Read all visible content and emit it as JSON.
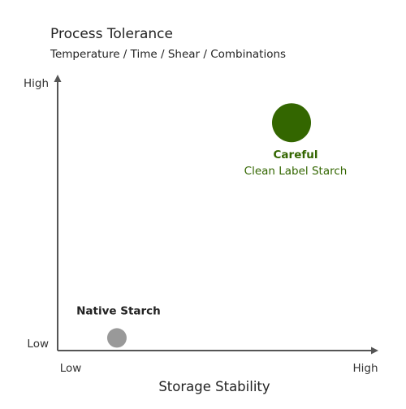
{
  "chart_data": {
    "type": "scatter",
    "title": "Process Tolerance",
    "subtitle": "Temperature / Time / Shear / Combinations",
    "xlabel": "Storage Stability",
    "ylabel": "",
    "x_ticks": [
      "Low",
      "High"
    ],
    "y_ticks": [
      "Low",
      "High"
    ],
    "xlim": [
      0,
      100
    ],
    "ylim": [
      0,
      100
    ],
    "grid": false,
    "points": [
      {
        "id": "native",
        "x": 19,
        "y": 5,
        "size": "small",
        "color": "#999999",
        "label_lines": [
          "Native Starch"
        ],
        "label_color": "#222222",
        "label_bold_lines": [
          0
        ],
        "label_position": "above"
      },
      {
        "id": "careful",
        "x": 75,
        "y": 90,
        "size": "large",
        "color": "#336600",
        "label_lines": [
          "Careful",
          "Clean Label Starch"
        ],
        "label_color": "#336600",
        "label_bold_lines": [
          0
        ],
        "label_position": "below"
      }
    ],
    "colors": {
      "axis": "#555555",
      "text": "#222222",
      "tick": "#333333"
    }
  }
}
